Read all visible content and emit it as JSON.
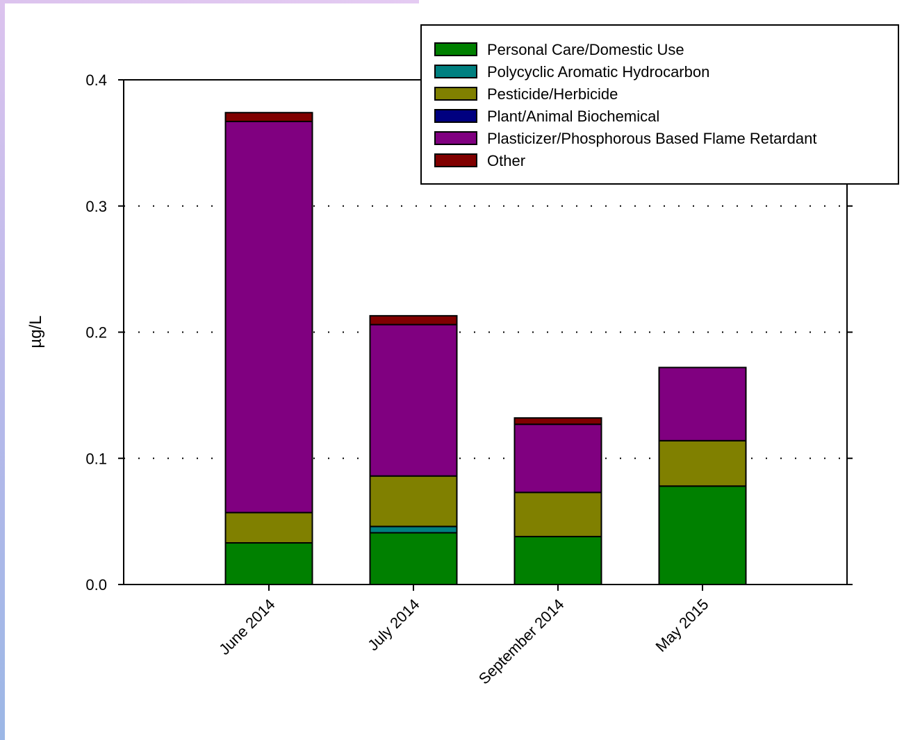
{
  "chart_data": {
    "type": "bar",
    "stacked": true,
    "title": "",
    "xlabel": "",
    "ylabel": "µg/L",
    "ylim": [
      0,
      0.4
    ],
    "yticks": [
      "0.0",
      "0.1",
      "0.2",
      "0.3",
      "0.4"
    ],
    "grid": "horizontal dotted",
    "legend_position": "top-right",
    "categories": [
      "June 2014",
      "July 2014",
      "September 2014",
      "May 2015"
    ],
    "series": [
      {
        "name": "Personal Care/Domestic Use",
        "color": "#008000",
        "values": [
          0.033,
          0.041,
          0.038,
          0.078
        ]
      },
      {
        "name": "Polycyclic Aromatic Hydrocarbon",
        "color": "#008080",
        "values": [
          0.0,
          0.005,
          0.0,
          0.0
        ]
      },
      {
        "name": "Pesticide/Herbicide",
        "color": "#808000",
        "values": [
          0.024,
          0.04,
          0.035,
          0.036
        ]
      },
      {
        "name": "Plant/Animal Biochemical",
        "color": "#000080",
        "values": [
          0.0,
          0.0,
          0.0,
          0.0
        ]
      },
      {
        "name": "Plasticizer/Phosphorous Based Flame Retardant",
        "color": "#800080",
        "values": [
          0.31,
          0.12,
          0.054,
          0.058
        ]
      },
      {
        "name": "Other",
        "color": "#800000",
        "values": [
          0.007,
          0.007,
          0.005,
          0.0
        ]
      }
    ]
  }
}
